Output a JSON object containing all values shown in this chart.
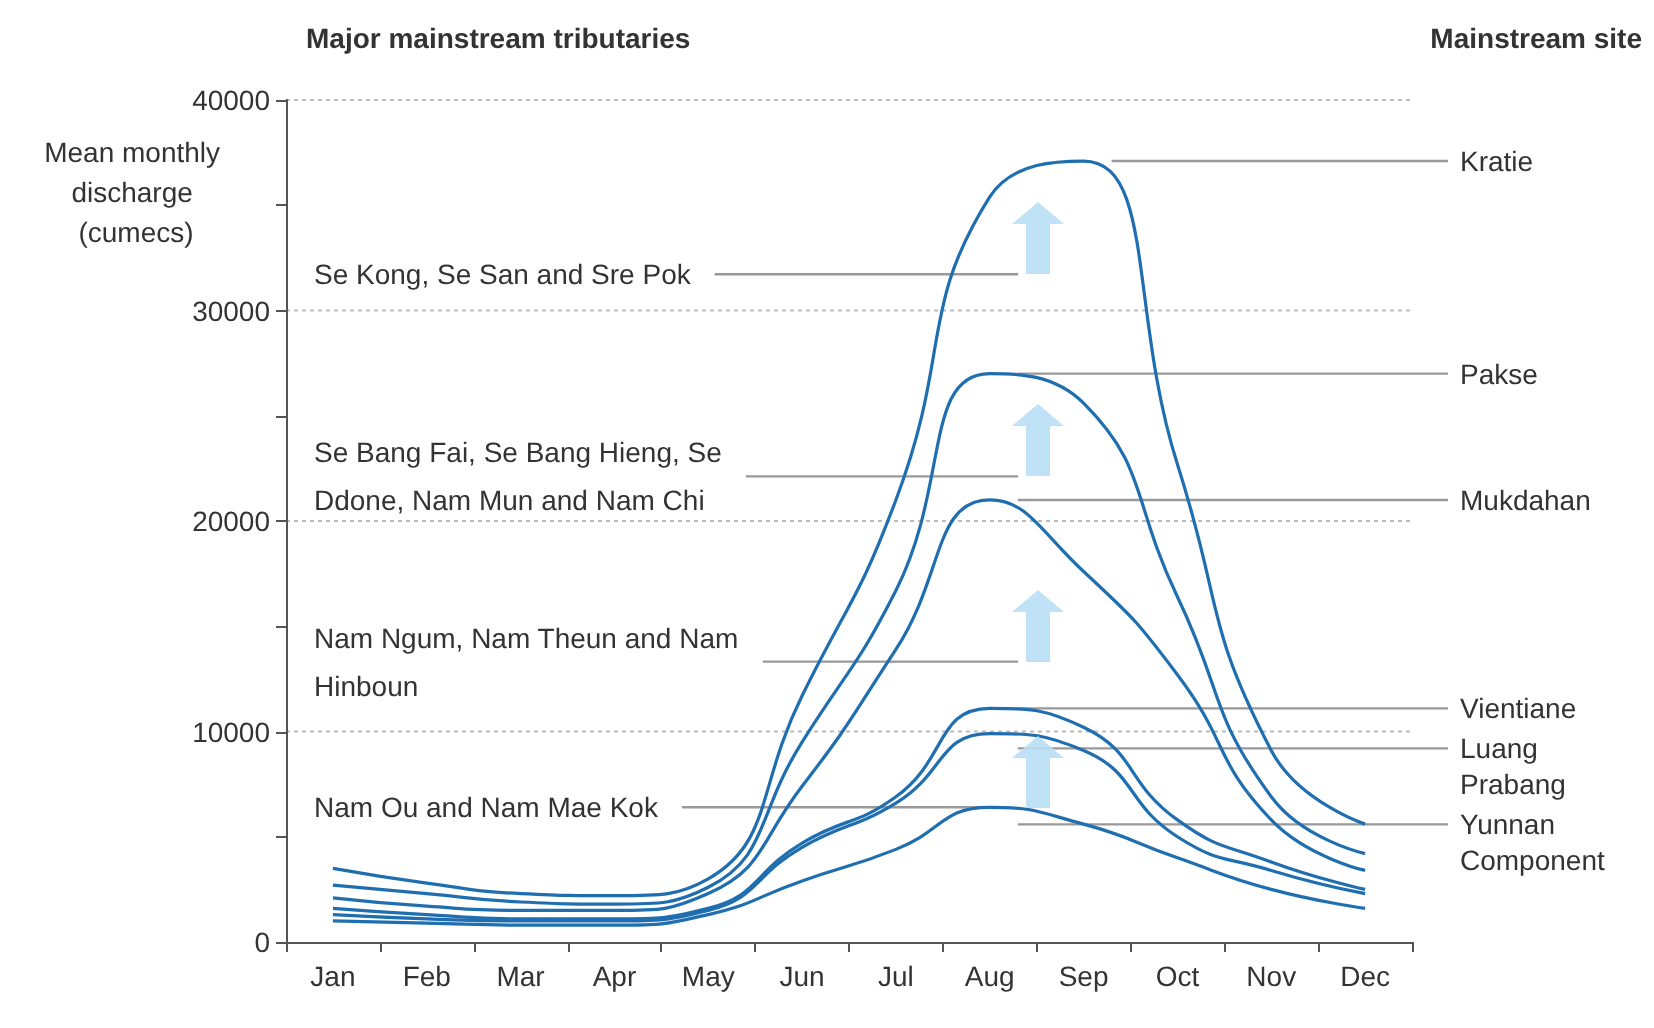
{
  "chart_data": {
    "type": "line",
    "title": "Major mainstream tributaries",
    "legend_title": "Mainstream site",
    "ylabel": "Mean monthly discharge (cumecs)",
    "categories": [
      "Jan",
      "Feb",
      "Mar",
      "Apr",
      "May",
      "Jun",
      "Jul",
      "Aug",
      "Sep",
      "Oct",
      "Nov",
      "Dec"
    ],
    "series": [
      {
        "name": "Kratie",
        "color": "#1f6eb0",
        "values": [
          3500,
          2800,
          2300,
          2200,
          3000,
          11700,
          21000,
          35400,
          37100,
          22700,
          9100,
          5600
        ]
      },
      {
        "name": "Pakse",
        "color": "#1f6eb0",
        "values": [
          2700,
          2300,
          1900,
          1800,
          2600,
          9500,
          16700,
          27000,
          25600,
          16400,
          6900,
          4200
        ]
      },
      {
        "name": "Mukdahan",
        "color": "#1f6eb0",
        "values": [
          2100,
          1700,
          1500,
          1500,
          2300,
          7400,
          13900,
          21000,
          17600,
          12700,
          5800,
          3400
        ]
      },
      {
        "name": "Vientiane",
        "color": "#1f6eb0",
        "values": [
          1600,
          1300,
          1100,
          1100,
          1600,
          4700,
          6900,
          11100,
          10200,
          5800,
          3800,
          2500
        ]
      },
      {
        "name": "Luang Prabang",
        "color": "#1f6eb0",
        "values": [
          1300,
          1100,
          1000,
          1000,
          1500,
          4500,
          6600,
          9900,
          9100,
          5000,
          3400,
          2300
        ]
      },
      {
        "name": "Yunnan Component",
        "color": "#1f6eb0",
        "values": [
          1000,
          900,
          800,
          800,
          1300,
          2900,
          4400,
          6400,
          5600,
          4000,
          2500,
          1600
        ]
      }
    ],
    "ylim": [
      0,
      40000
    ],
    "yticks": [
      0,
      {
        "value": 5000,
        "label": null
      },
      10000,
      {
        "value": 15000,
        "label": null
      },
      20000,
      {
        "value": 25000,
        "label": null
      },
      30000,
      {
        "value": 35000,
        "label": null
      },
      40000
    ],
    "annotations": [
      "Se Kong, Se San and Sre Pok",
      "Se Bang Fai, Se Bang Hieng, Se Ddone, Nam Mun and Nam Chi",
      "Nam Ngum, Nam Theun and Nam Hinboun",
      {
        "text": "Nam Ou and Nam Mae Kok",
        "x": "Aug",
        "y": 6400
      }
    ],
    "grid": "y",
    "legend": false,
    "marker": "none",
    "line_style": "solid"
  }
}
